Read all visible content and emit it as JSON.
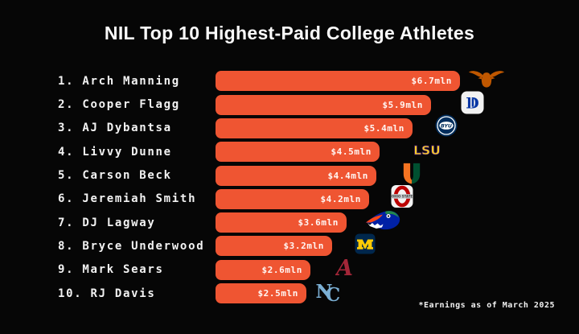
{
  "title": "NIL Top 10 Highest-Paid College Athletes",
  "footnote": "*Earnings as of March 2025",
  "colors": {
    "background": "#060606",
    "bar": "#EF5532",
    "title_text": "#FAFAFA",
    "value_text": "#FFF7F4"
  },
  "chart_data": {
    "type": "bar",
    "orientation": "horizontal",
    "title": "NIL Top 10 Highest-Paid College Athletes",
    "unit": "$ million (shown as mln)",
    "xlim": [
      0,
      6.7
    ],
    "grid": false,
    "legend": false,
    "categories": [
      "Arch Manning",
      "Cooper Flagg",
      "AJ Dybantsa",
      "Livvy Dunne",
      "Carson Beck",
      "Jeremiah Smith",
      "DJ Lagway",
      "Bryce Underwood",
      "Mark Sears",
      "RJ Davis"
    ],
    "values": [
      6.7,
      5.9,
      5.4,
      4.5,
      4.4,
      4.2,
      3.6,
      3.2,
      2.6,
      2.5
    ],
    "value_labels": [
      "$6.7mln",
      "$5.9mln",
      "$5.4mln",
      "$4.5mln",
      "$4.4mln",
      "$4.2mln",
      "$3.6mln",
      "$3.2mln",
      "$2.6mln",
      "$2.5mln"
    ],
    "bar_color": "#EF5532",
    "annotation": "*Earnings as of March 2025"
  },
  "rows": [
    {
      "rank": "1. ",
      "name": "Arch Manning",
      "value": 6.7,
      "label": "$6.7mln",
      "team": "Texas Longhorns",
      "logo_icon": "texas-longhorns-logo-icon"
    },
    {
      "rank": "2. ",
      "name": "Cooper Flagg",
      "value": 5.9,
      "label": "$5.9mln",
      "team": "Duke Blue Devils",
      "logo_icon": "duke-logo-icon"
    },
    {
      "rank": "3. ",
      "name": "AJ Dybantsa",
      "value": 5.4,
      "label": "$5.4mln",
      "team": "BYU Cougars",
      "logo_icon": "byu-logo-icon"
    },
    {
      "rank": "4. ",
      "name": "Livvy Dunne",
      "value": 4.5,
      "label": "$4.5mln",
      "team": "LSU Tigers",
      "logo_icon": "lsu-logo-icon"
    },
    {
      "rank": "5. ",
      "name": "Carson Beck",
      "value": 4.4,
      "label": "$4.4mln",
      "team": "Miami Hurricanes",
      "logo_icon": "miami-logo-icon"
    },
    {
      "rank": "6. ",
      "name": "Jeremiah Smith",
      "value": 4.2,
      "label": "$4.2mln",
      "team": "Ohio State Buckeyes",
      "logo_icon": "ohio-state-logo-icon"
    },
    {
      "rank": "7. ",
      "name": "DJ Lagway",
      "value": 3.6,
      "label": "$3.6mln",
      "team": "Florida Gators",
      "logo_icon": "florida-gators-logo-icon"
    },
    {
      "rank": "8. ",
      "name": "Bryce Underwood",
      "value": 3.2,
      "label": "$3.2mln",
      "team": "Michigan Wolverines",
      "logo_icon": "michigan-logo-icon"
    },
    {
      "rank": "9. ",
      "name": "Mark Sears",
      "value": 2.6,
      "label": "$2.6mln",
      "team": "Alabama Crimson Tide",
      "logo_icon": "alabama-logo-icon"
    },
    {
      "rank": "10. ",
      "name": "RJ Davis",
      "value": 2.5,
      "label": "$2.5mln",
      "team": "North Carolina Tar Heels",
      "logo_icon": "unc-logo-icon"
    }
  ]
}
